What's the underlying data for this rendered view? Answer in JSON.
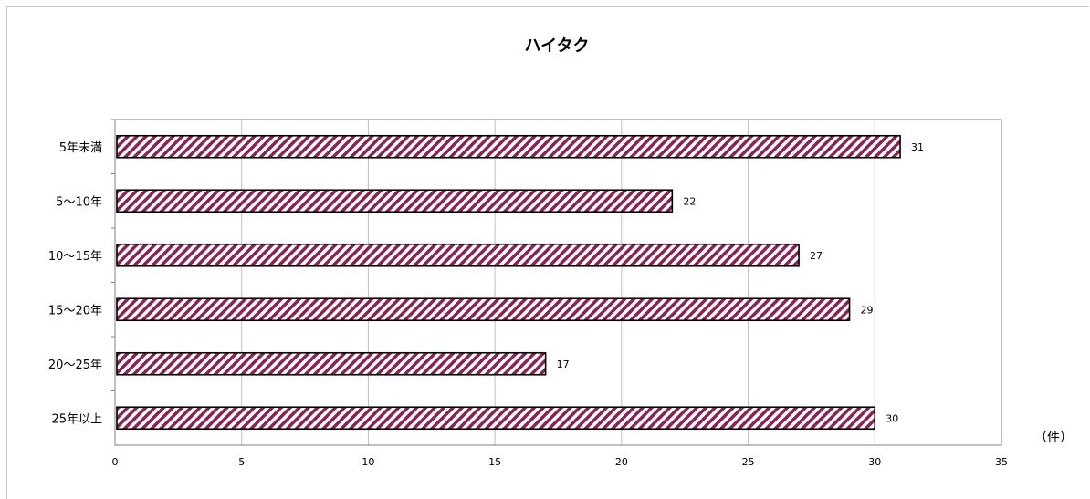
{
  "chart_data": {
    "type": "bar",
    "orientation": "horizontal",
    "title": "ハイタク",
    "categories": [
      "5年未満",
      "5～10年",
      "10～15年",
      "15～20年",
      "20～25年",
      "25年以上"
    ],
    "series": [
      {
        "values": [
          31,
          22,
          27,
          29,
          17,
          30
        ]
      }
    ],
    "xlim": [
      0,
      35
    ],
    "xticks": [
      0,
      5,
      10,
      15,
      20,
      25,
      30,
      35
    ],
    "unit_label": "（件）",
    "grid": true,
    "legend": "none",
    "bar_fill": "#8b2252",
    "bar_pattern": "diagonal-hatch",
    "bar_stroke": "#000000"
  }
}
